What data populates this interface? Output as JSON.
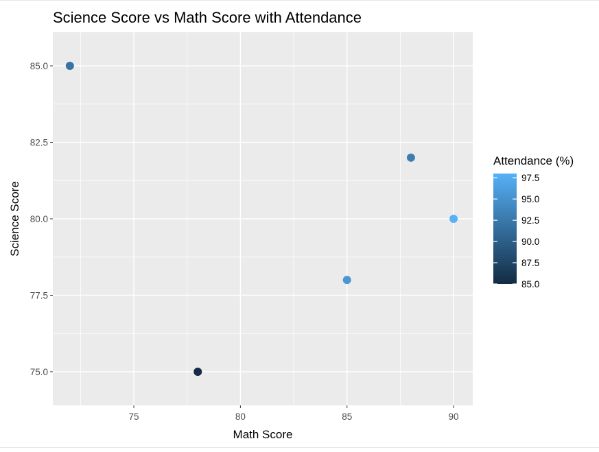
{
  "chart_data": {
    "type": "scatter",
    "title": "Science Score vs Math Score with Attendance",
    "xlabel": "Math Score",
    "ylabel": "Science Score",
    "xlim": [
      71.2,
      90.9
    ],
    "ylim": [
      73.9,
      86.1
    ],
    "x_ticks": [
      75,
      80,
      85,
      90
    ],
    "x_tick_labels": [
      "75",
      "80",
      "85",
      "90"
    ],
    "y_ticks": [
      75,
      77.5,
      80,
      82.5,
      85
    ],
    "y_tick_labels": [
      "75.0",
      "77.5",
      "80.0",
      "82.5",
      "85.0"
    ],
    "grid": true,
    "points": [
      {
        "x": 72,
        "y": 85,
        "attendance": 92
      },
      {
        "x": 78,
        "y": 75,
        "attendance": 85
      },
      {
        "x": 85,
        "y": 78,
        "attendance": 95.5
      },
      {
        "x": 88,
        "y": 82,
        "attendance": 93
      },
      {
        "x": 90,
        "y": 80,
        "attendance": 98
      }
    ],
    "legend": {
      "title": "Attendance (%)",
      "placement": "right",
      "range": [
        85,
        98
      ],
      "breaks": [
        97.5,
        95.0,
        92.5,
        90.0,
        87.5,
        85.0
      ],
      "break_labels": [
        "97.5",
        "95.0",
        "92.5",
        "90.0",
        "87.5",
        "85.0"
      ],
      "color_low": "#132b43",
      "color_high": "#56b1f7"
    },
    "colors": {
      "panel_background": "#ebebeb",
      "grid_major": "#ffffff",
      "tick_text": "#4d4d4d",
      "title_text": "#000000"
    }
  }
}
